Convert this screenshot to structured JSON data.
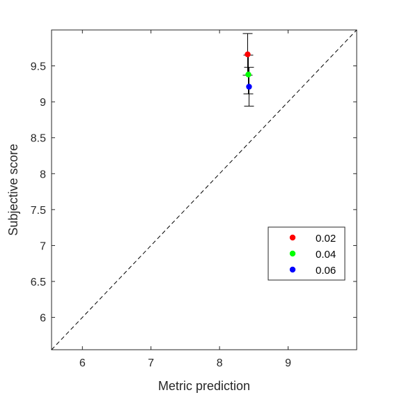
{
  "chart_data": {
    "type": "scatter",
    "title": "",
    "xlabel": "Metric prediction",
    "ylabel": "Subjective score",
    "xlim": [
      5.55,
      10.0
    ],
    "ylim": [
      5.55,
      10.0
    ],
    "xticks": [
      6,
      7,
      8,
      9
    ],
    "yticks": [
      6,
      6.5,
      7,
      7.5,
      8,
      8.5,
      9,
      9.5
    ],
    "xtick_labels": [
      "6",
      "7",
      "8",
      "9"
    ],
    "ytick_labels": [
      "6",
      "6.5",
      "7",
      "7.5",
      "8",
      "8.5",
      "9",
      "9.5"
    ],
    "grid": false,
    "reference_line": {
      "style": "dashed",
      "from": [
        5.55,
        5.55
      ],
      "to": [
        10.0,
        10.0
      ]
    },
    "legend": {
      "position": "lower-right"
    },
    "series": [
      {
        "name": "0.02",
        "color": "#ff0000",
        "x": 8.41,
        "y": 9.66,
        "y_err": 0.29
      },
      {
        "name": "0.04",
        "color": "#00ff00",
        "x": 8.42,
        "y": 9.38,
        "y_err": 0.27
      },
      {
        "name": "0.06",
        "color": "#0000ff",
        "x": 8.43,
        "y": 9.21,
        "y_err": 0.27
      }
    ]
  }
}
